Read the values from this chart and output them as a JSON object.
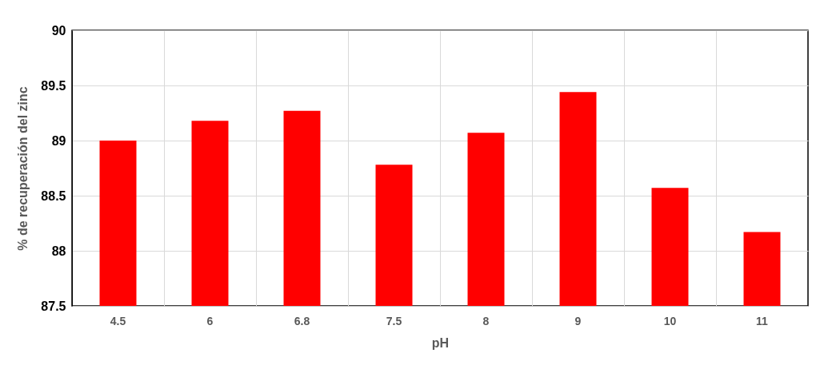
{
  "chart_data": {
    "type": "bar",
    "xlabel": "pH",
    "ylabel": "% de recuperación del zinc",
    "categories": [
      "4.5",
      "6",
      "6.8",
      "7.5",
      "8",
      "9",
      "10",
      "11"
    ],
    "values": [
      89.0,
      89.18,
      89.27,
      88.78,
      89.07,
      89.44,
      88.57,
      88.17
    ],
    "color": "#ff0000",
    "ylim": [
      87.5,
      90
    ],
    "yticks": [
      87.5,
      88,
      88.5,
      89,
      89.5,
      90
    ],
    "grid": true
  }
}
